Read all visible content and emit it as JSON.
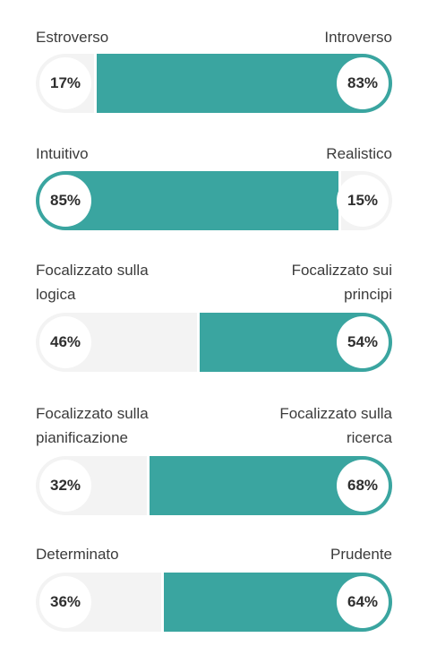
{
  "traits": [
    {
      "left_label": "Estroverso",
      "right_label": "Introverso",
      "left_pct": "17%",
      "right_pct": "83%",
      "left_value": 17,
      "right_value": 83,
      "dominant": "right"
    },
    {
      "left_label": "Intuitivo",
      "right_label": "Realistico",
      "left_pct": "85%",
      "right_pct": "15%",
      "left_value": 85,
      "right_value": 15,
      "dominant": "left"
    },
    {
      "left_label": "Focalizzato sulla\nlogica",
      "right_label": "Focalizzato sui\nprincipi",
      "left_pct": "46%",
      "right_pct": "54%",
      "left_value": 46,
      "right_value": 54,
      "dominant": "right"
    },
    {
      "left_label": "Focalizzato sulla\npianificazione",
      "right_label": "Focalizzato sulla\nricerca",
      "left_pct": "32%",
      "right_pct": "68%",
      "left_value": 32,
      "right_value": 68,
      "dominant": "right"
    },
    {
      "left_label": "Determinato",
      "right_label": "Prudente",
      "left_pct": "36%",
      "right_pct": "64%",
      "left_value": 36,
      "right_value": 64,
      "dominant": "right"
    }
  ],
  "colors": {
    "accent": "#3aa5a0",
    "track": "#f3f3f3",
    "text": "#3b3b3b"
  }
}
